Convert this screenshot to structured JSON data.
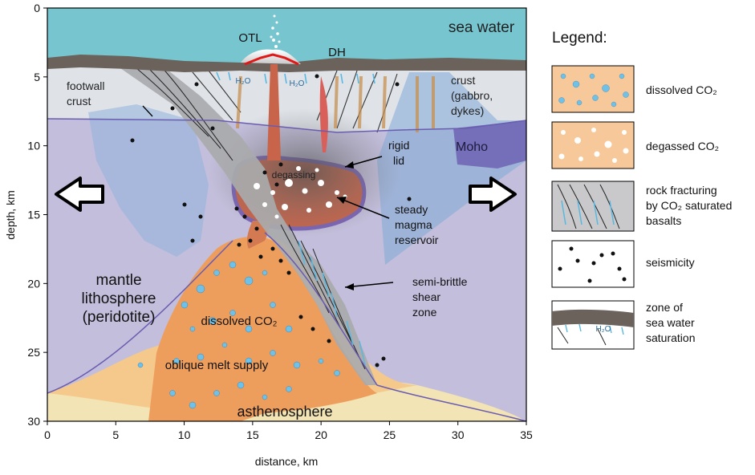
{
  "axes": {
    "y_label": "depth, km",
    "x_label": "distance, km",
    "y_ticks": [
      "0",
      "5",
      "10",
      "15",
      "20",
      "25",
      "30"
    ],
    "x_ticks": [
      "0",
      "5",
      "10",
      "15",
      "20",
      "25",
      "30",
      "35"
    ]
  },
  "labels": {
    "sea_water": "sea water",
    "otl": "OTL",
    "dh": "DH",
    "h2o_1": "H₂O",
    "h2o_2": "H₂O",
    "footwall_line1": "footwall",
    "footwall_line2": "crust",
    "crust_line1": "crust",
    "crust_line2": "(gabbro,",
    "crust_line3": "dykes)",
    "rigid_line1": "rigid",
    "rigid_line2": "lid",
    "moho": "Moho",
    "degassing": "degassing",
    "steady_line1": "steady",
    "steady_line2": "magma",
    "steady_line3": "reservoir",
    "mantle_line1": "mantle",
    "mantle_line2": "lithosphere",
    "mantle_line3": "(peridotite)",
    "dissolved": "dissolved CO₂",
    "semi_line1": "semi-brittle",
    "semi_line2": "shear",
    "semi_line3": "zone",
    "oblique": "oblique melt supply",
    "asthenosphere": "asthenosphere"
  },
  "legend": {
    "title": "Legend:",
    "items": [
      {
        "label": [
          "dissolved CO₂"
        ]
      },
      {
        "label": [
          "degassed CO₂"
        ]
      },
      {
        "label": [
          "rock fracturing",
          "by CO₂ saturated",
          "basalts"
        ]
      },
      {
        "label": [
          "seismicity"
        ]
      },
      {
        "label": [
          "zone of",
          "sea water",
          "saturation"
        ]
      }
    ],
    "h2o": "H₂O"
  },
  "colors": {
    "sea": "#77c6cf",
    "mantle": "#c3bedb",
    "moho_purple": "#6a5cb0",
    "crust": "#d8dde4",
    "magma": "#c8644a",
    "dissolved_orange": "#f0a86a",
    "asthenosphere": "#f2e4b4",
    "shear": "#a9aaac",
    "dark_crust": "#6b625c"
  }
}
